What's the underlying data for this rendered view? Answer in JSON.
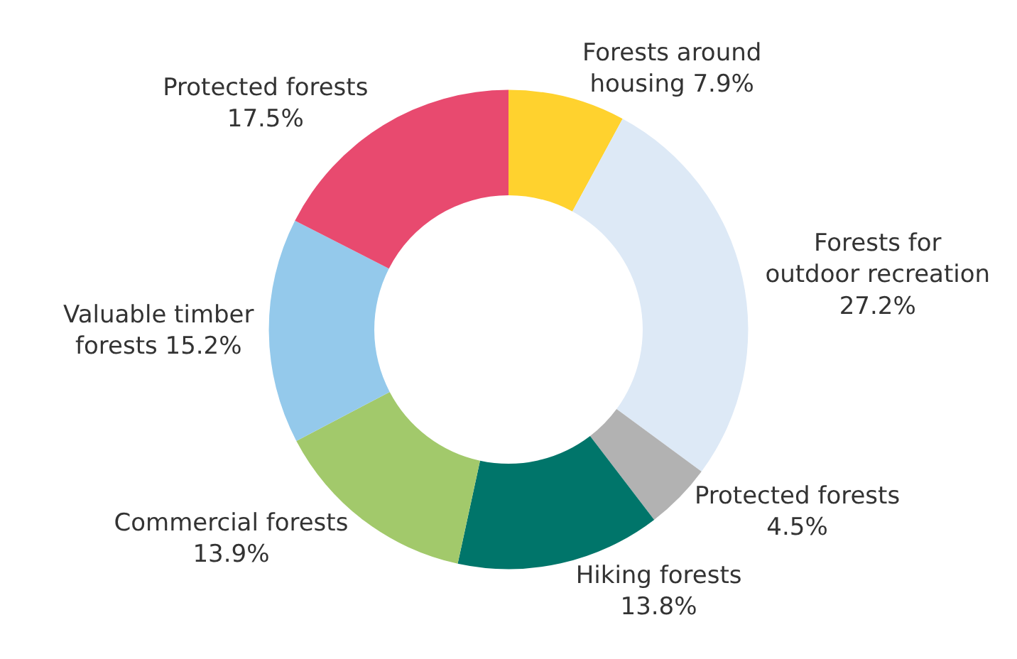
{
  "chart_data": {
    "type": "donut",
    "categories": [
      "Forests around housing",
      "Forests for outdoor recreation",
      "Protected forests",
      "Hiking forests",
      "Commercial forests",
      "Valuable timber forests",
      "Protected forests"
    ],
    "values": [
      7.9,
      27.2,
      4.5,
      13.8,
      13.9,
      15.2,
      17.5
    ],
    "value_labels": [
      "7.9%",
      "27.2%",
      "4.5%",
      "13.8%",
      "13.9%",
      "15.2%",
      "17.5%"
    ],
    "colors": [
      "#ffd22e",
      "#dde9f6",
      "#b2b2b2",
      "#00756a",
      "#a2c96b",
      "#94c9eb",
      "#e84a6f"
    ],
    "legend": false
  }
}
